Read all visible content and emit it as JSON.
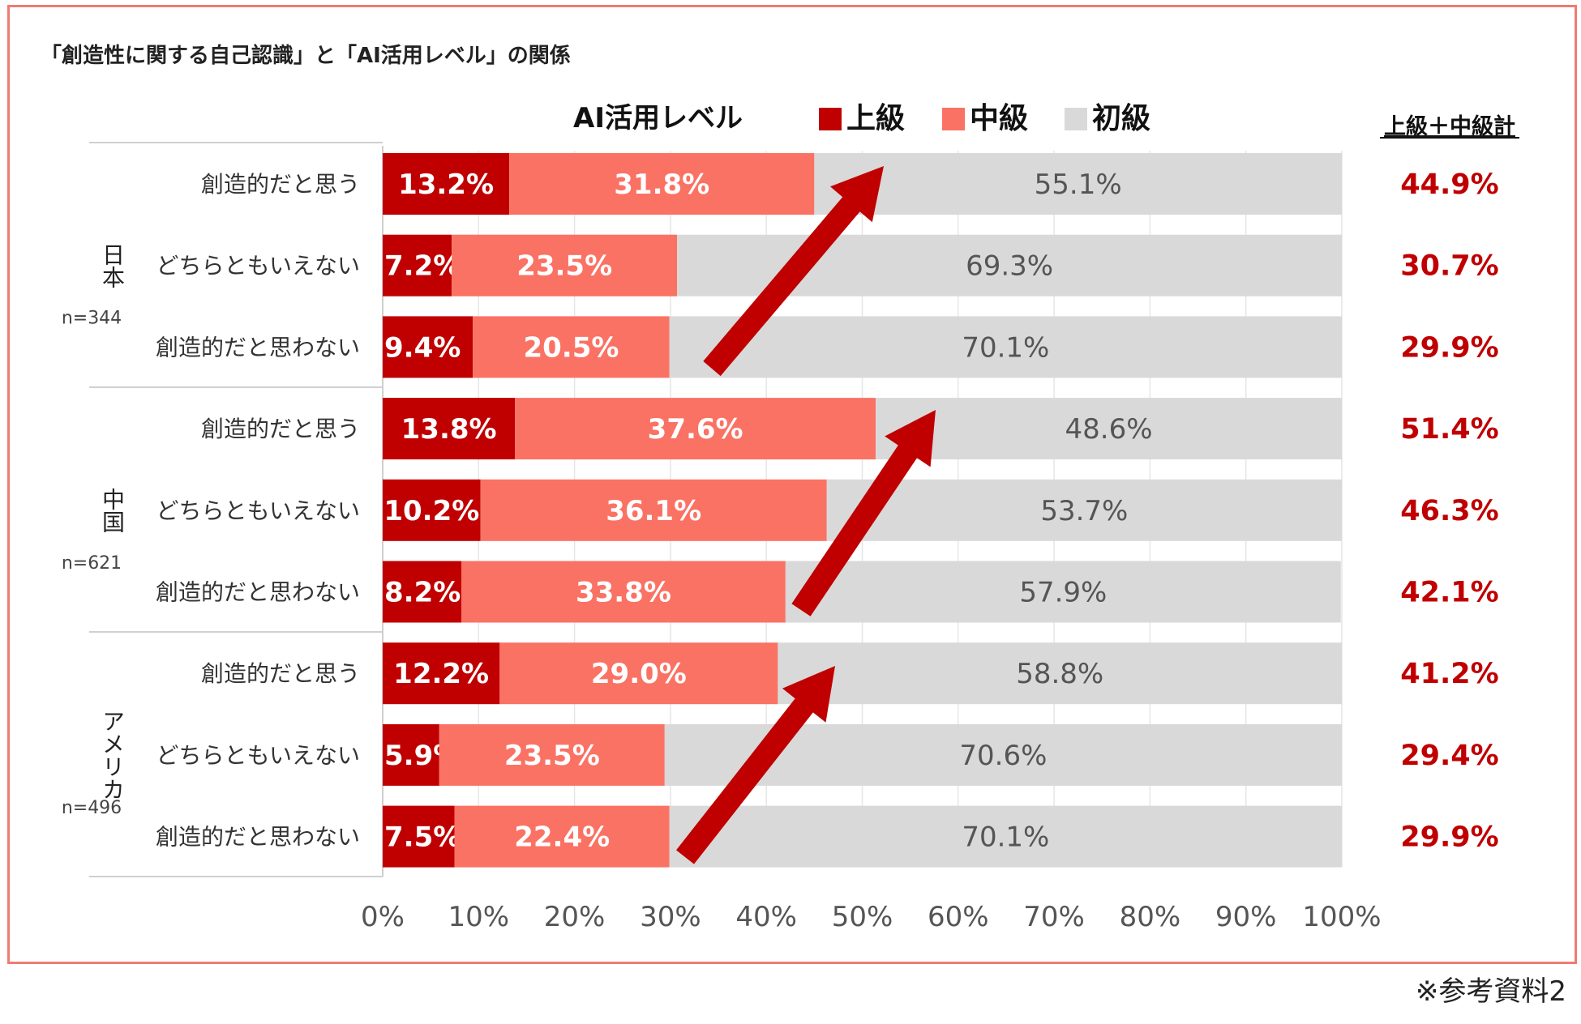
{
  "chart_data": {
    "type": "bar",
    "stacked": true,
    "orientation": "horizontal",
    "title": "「創造性に関する自己認識」と「AI活用レベル」の関係",
    "legend_title": "AI活用レベル",
    "legend_position": "top",
    "total_header": "上級＋中級計",
    "xlim": [
      0,
      100
    ],
    "x_ticks": [
      "0%",
      "10%",
      "20%",
      "30%",
      "40%",
      "50%",
      "60%",
      "70%",
      "80%",
      "90%",
      "100%"
    ],
    "grid": true,
    "series": [
      {
        "name": "上級",
        "color": "#c00000"
      },
      {
        "name": "中級",
        "color": "#fa7264"
      },
      {
        "name": "初級",
        "color": "#d9d9d9"
      }
    ],
    "groups": [
      {
        "name": "日本",
        "n": "n=344",
        "rows": [
          {
            "label": "創造的だと思う",
            "values": [
              13.2,
              31.8,
              55.1
            ],
            "total": "44.9%"
          },
          {
            "label": "どちらともいえない",
            "values": [
              7.2,
              23.5,
              69.3
            ],
            "total": "30.7%"
          },
          {
            "label": "創造的だと思わない",
            "values": [
              9.4,
              20.5,
              70.1
            ],
            "total": "29.9%"
          }
        ]
      },
      {
        "name": "中国",
        "n": "n=621",
        "rows": [
          {
            "label": "創造的だと思う",
            "values": [
              13.8,
              37.6,
              48.6
            ],
            "total": "51.4%"
          },
          {
            "label": "どちらともいえない",
            "values": [
              10.2,
              36.1,
              53.7
            ],
            "total": "46.3%"
          },
          {
            "label": "創造的だと思わない",
            "values": [
              8.2,
              33.8,
              57.9
            ],
            "total": "42.1%"
          }
        ]
      },
      {
        "name": "アメリカ",
        "n": "n=496",
        "rows": [
          {
            "label": "創造的だと思う",
            "values": [
              12.2,
              29.0,
              58.8
            ],
            "total": "41.2%"
          },
          {
            "label": "どちらともいえない",
            "values": [
              5.9,
              23.5,
              70.6
            ],
            "total": "29.4%"
          },
          {
            "label": "創造的だと思わない",
            "values": [
              7.5,
              22.4,
              70.1
            ],
            "total": "29.9%"
          }
        ]
      }
    ],
    "annotations": [
      "trend-arrow",
      "trend-arrow",
      "trend-arrow"
    ]
  },
  "footnote": "※参考資料2"
}
